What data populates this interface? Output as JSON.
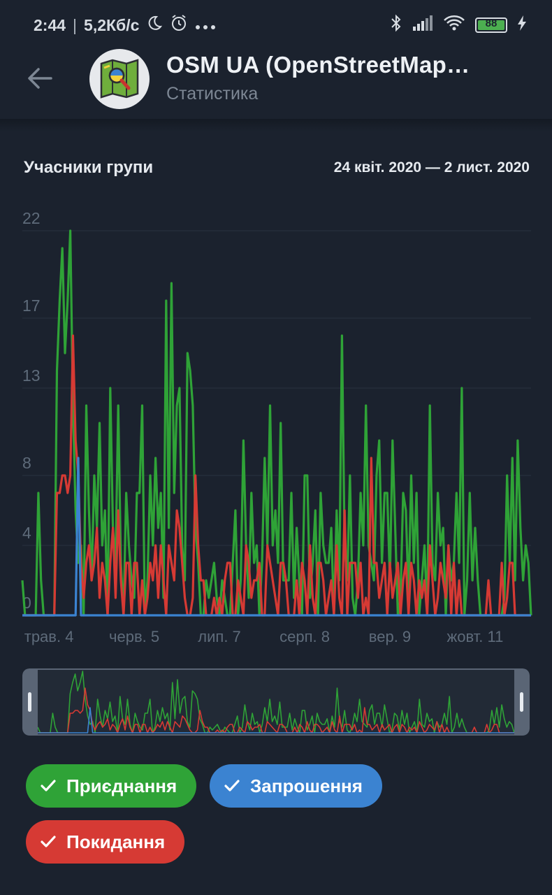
{
  "status_bar": {
    "time": "2:44",
    "speed": "5,2Кб/с",
    "battery": "88"
  },
  "header": {
    "title": "OSM UA (OpenStreetMap…",
    "subtitle": "Статистика"
  },
  "card": {
    "title": "Учасники групи",
    "range": "24 квіт. 2020 — 2 лист. 2020"
  },
  "colors": {
    "joins": "#2fa337",
    "invites": "#3b83d1",
    "leaves": "#d63a34",
    "grid": "#27303d",
    "axis_text": "#5e6b7a"
  },
  "filters": [
    {
      "label": "Приєднання",
      "color": "#2fa337"
    },
    {
      "label": "Запрошення",
      "color": "#3b83d1"
    },
    {
      "label": "Покидання",
      "color": "#d63a34"
    }
  ],
  "chart_data": {
    "type": "line",
    "title": "Учасники групи",
    "ylim": [
      0,
      22
    ],
    "yticks": [
      "22",
      "17",
      "13",
      "8",
      "4",
      "0"
    ],
    "ytick_values": [
      22,
      17,
      13,
      8,
      4,
      0
    ],
    "xtick_labels": [
      "трав. 4",
      "черв. 5",
      "лип. 7",
      "серп. 8",
      "вер. 9",
      "жовт. 11"
    ],
    "xtick_day_index": [
      10,
      42,
      74,
      106,
      138,
      170
    ],
    "series": [
      {
        "name": "Приєднання",
        "color": "#2fa337",
        "values": [
          2,
          0,
          0,
          0,
          0,
          0,
          7,
          2,
          0,
          0,
          0,
          0,
          0,
          14,
          18,
          21,
          15,
          18,
          22,
          12,
          6,
          3,
          4,
          0,
          12,
          6,
          2,
          8,
          5,
          11,
          4,
          6,
          0,
          13,
          5,
          3,
          12,
          3,
          0,
          7,
          4,
          2,
          1,
          7,
          7,
          12,
          0,
          2,
          8,
          4,
          9,
          5,
          7,
          1,
          18,
          5,
          19,
          7,
          12,
          13,
          4,
          2,
          15,
          14,
          12,
          5,
          3,
          0,
          0,
          2,
          1,
          2,
          3,
          1,
          0,
          2,
          1,
          0,
          0,
          3,
          6,
          0,
          2,
          10,
          4,
          1,
          7,
          3,
          4,
          0,
          3,
          9,
          4,
          12,
          4,
          6,
          3,
          11,
          2,
          2,
          2,
          7,
          1,
          5,
          2,
          0,
          8,
          8,
          1,
          3,
          6,
          0,
          7,
          4,
          3,
          3,
          5,
          0,
          6,
          2,
          16,
          4,
          2,
          8,
          1,
          0,
          2,
          7,
          4,
          12,
          4,
          3,
          2,
          8,
          10,
          3,
          7,
          7,
          2,
          10,
          5,
          0,
          1,
          7,
          6,
          1,
          8,
          3,
          7,
          0,
          2,
          4,
          0,
          12,
          3,
          2,
          7,
          4,
          5,
          0,
          4,
          2,
          3,
          7,
          3,
          13,
          0,
          2,
          7,
          2,
          5,
          2,
          0,
          0,
          0,
          0,
          0,
          0,
          0,
          0,
          0,
          1,
          8,
          3,
          9,
          2,
          10,
          5,
          2,
          4,
          3,
          0
        ]
      },
      {
        "name": "Запрошення",
        "color": "#3b83d1",
        "values": [
          0,
          0,
          0,
          0,
          0,
          0,
          0,
          0,
          0,
          0,
          0,
          0,
          0,
          0,
          0,
          0,
          0,
          0,
          0,
          0,
          0,
          9,
          0,
          0,
          0,
          0,
          0,
          0,
          0,
          0,
          0,
          0,
          0,
          0,
          0,
          0,
          0,
          0,
          0,
          0,
          0,
          0,
          0,
          0,
          0,
          0,
          0,
          0,
          0,
          0,
          0,
          0,
          0,
          0,
          0,
          0,
          0,
          0,
          0,
          0,
          0,
          0,
          0,
          0,
          0,
          0,
          0,
          0,
          0,
          0,
          0,
          0,
          0,
          0,
          0,
          0,
          0,
          0,
          0,
          0,
          0,
          0,
          0,
          0,
          0,
          0,
          0,
          0,
          0,
          0,
          0,
          0,
          0,
          0,
          0,
          0,
          0,
          0,
          0,
          0,
          0,
          0,
          0,
          0,
          0,
          0,
          0,
          0,
          0,
          0,
          0,
          0,
          0,
          0,
          0,
          0,
          0,
          0,
          0,
          0,
          0,
          0,
          0,
          0,
          0,
          0,
          0,
          0,
          0,
          0,
          0,
          0,
          0,
          0,
          0,
          0,
          0,
          0,
          0,
          0,
          0,
          0,
          0,
          0,
          0,
          0,
          0,
          0,
          0,
          0,
          0,
          0,
          0,
          0,
          0,
          0,
          0,
          0,
          0,
          0,
          0,
          0,
          0,
          0,
          0,
          0,
          0,
          0,
          0,
          0,
          0,
          0,
          0,
          0,
          0,
          0,
          0,
          0,
          0,
          0,
          0,
          0,
          0,
          0,
          0,
          0,
          0,
          0,
          0,
          0,
          0,
          0
        ]
      },
      {
        "name": "Покидання",
        "color": "#d63a34",
        "values": [
          0,
          0,
          0,
          0,
          0,
          0,
          0,
          0,
          0,
          0,
          0,
          0,
          0,
          7,
          7,
          8,
          8,
          7,
          8,
          16,
          10,
          8,
          3,
          1,
          3,
          4,
          2,
          3,
          5,
          1,
          3,
          2,
          0,
          3,
          5,
          1,
          6,
          2,
          0,
          3,
          3,
          0,
          3,
          3,
          0,
          2,
          0,
          1,
          3,
          2,
          4,
          1,
          4,
          2,
          0,
          4,
          3,
          2,
          6,
          5,
          3,
          1,
          0,
          0,
          1,
          8,
          4,
          2,
          2,
          0,
          0,
          0,
          1,
          0,
          1,
          0,
          2,
          3,
          3,
          0,
          0,
          2,
          1,
          0,
          4,
          3,
          1,
          2,
          2,
          3,
          0,
          0,
          4,
          3,
          2,
          1,
          0,
          3,
          3,
          2,
          0,
          0,
          0,
          2,
          0,
          3,
          2,
          0,
          4,
          1,
          0,
          3,
          3,
          2,
          0,
          1,
          2,
          0,
          4,
          1,
          0,
          6,
          0,
          3,
          3,
          3,
          1,
          3,
          0,
          1,
          0,
          9,
          3,
          3,
          1,
          2,
          3,
          0,
          3,
          1,
          2,
          3,
          0,
          2,
          3,
          0,
          3,
          2,
          0,
          2,
          1,
          2,
          0,
          4,
          2,
          0,
          1,
          3,
          2,
          1,
          4,
          0,
          3,
          0,
          2,
          0,
          0,
          0,
          0,
          0,
          0,
          0,
          0,
          0,
          0,
          2,
          0,
          0,
          0,
          0,
          3,
          0,
          1,
          3,
          3,
          0,
          0,
          0,
          0,
          0,
          0,
          0
        ]
      }
    ]
  }
}
